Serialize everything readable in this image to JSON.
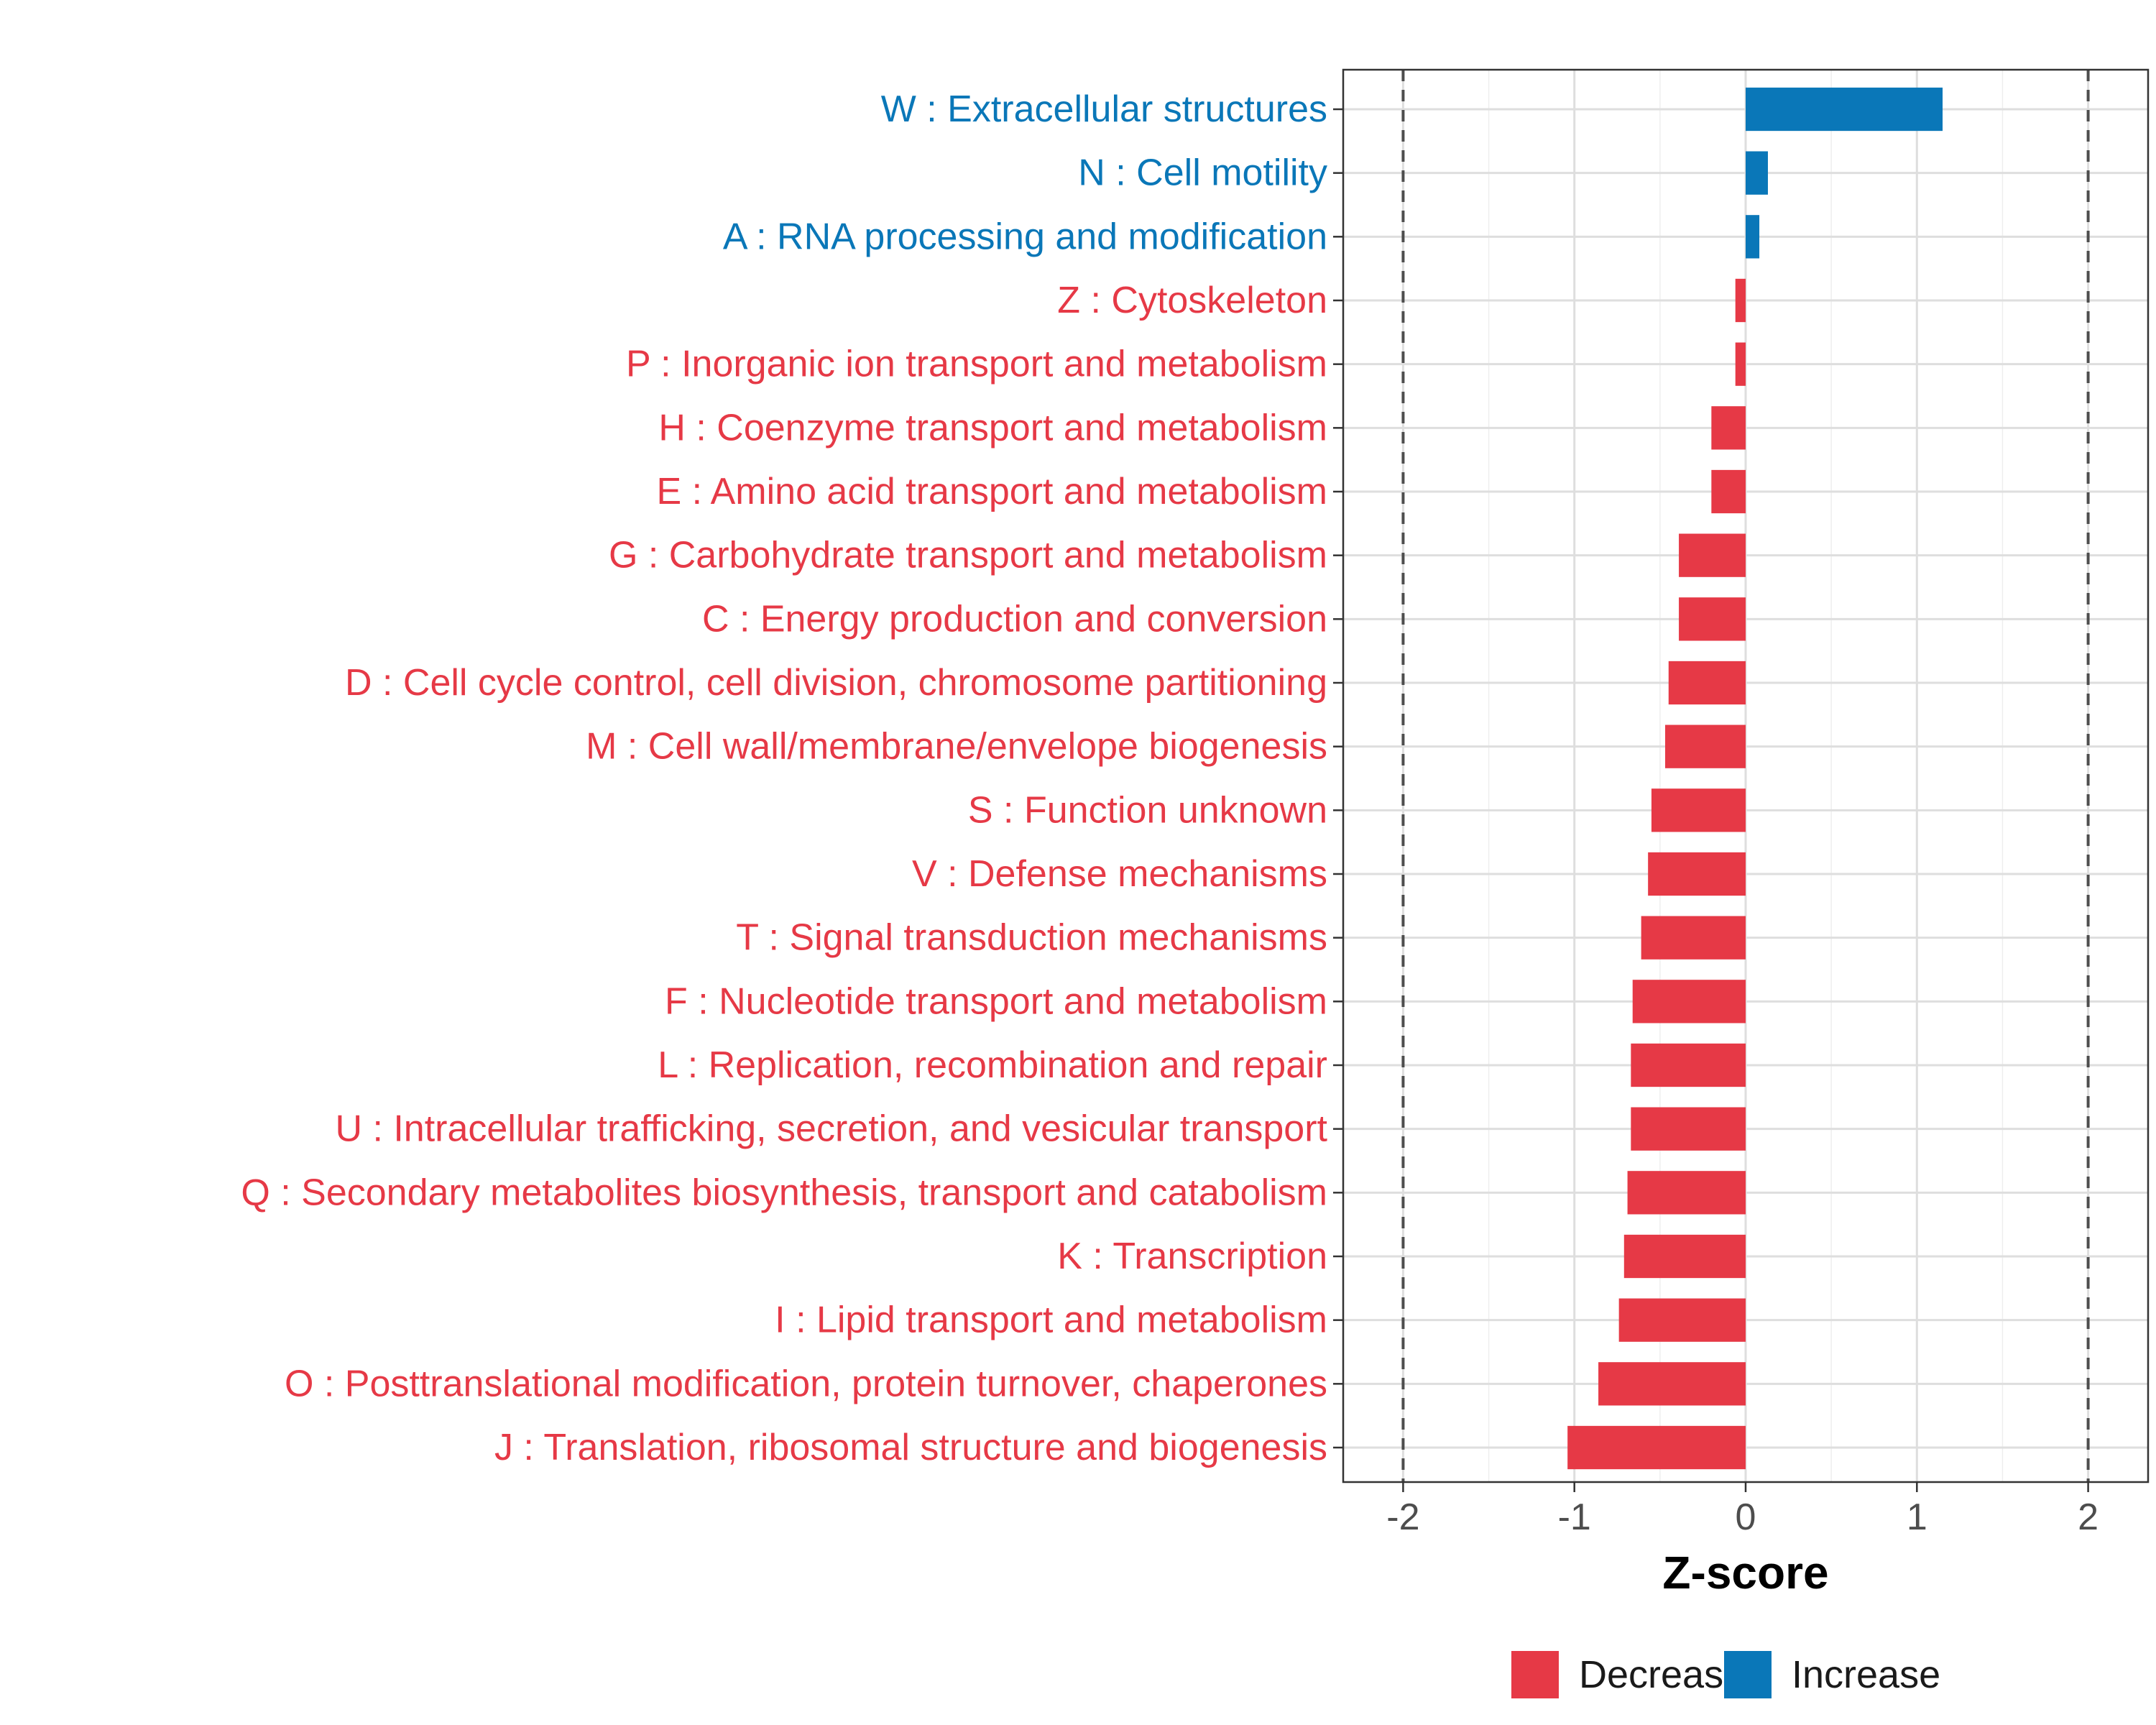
{
  "chart_data": {
    "type": "bar",
    "orientation": "horizontal",
    "xlabel": "Z-score",
    "ylabel": "",
    "xlim": [
      -2.35,
      2.35
    ],
    "xticks": [
      -2,
      -1,
      0,
      1,
      2
    ],
    "xtick_labels": [
      "-2",
      "-1",
      "0",
      "1",
      "2"
    ],
    "reference_lines": [
      -2,
      2
    ],
    "grid": true,
    "colors": {
      "Decrease": "#e63946",
      "Increase": "#0a77b8"
    },
    "categories": [
      "W : Extracellular structures",
      "N : Cell motility",
      "A : RNA processing and modification",
      "Z : Cytoskeleton",
      "P : Inorganic ion transport and metabolism",
      "H : Coenzyme transport and metabolism",
      "E : Amino acid transport and metabolism",
      "G : Carbohydrate transport and metabolism",
      "C : Energy production and conversion",
      "D : Cell cycle control, cell division, chromosome partitioning",
      "M : Cell wall/membrane/envelope biogenesis",
      "S : Function unknown",
      "V : Defense mechanisms",
      "T : Signal transduction mechanisms",
      "F : Nucleotide transport and metabolism",
      "L : Replication, recombination and repair",
      "U : Intracellular trafficking, secretion, and vesicular transport",
      "Q : Secondary metabolites biosynthesis, transport and catabolism",
      "K : Transcription",
      "I : Lipid transport and metabolism",
      "O : Posttranslational modification, protein turnover, chaperones",
      "J : Translation, ribosomal structure and biogenesis"
    ],
    "values": [
      1.15,
      0.13,
      0.08,
      -0.06,
      -0.06,
      -0.2,
      -0.2,
      -0.39,
      -0.39,
      -0.45,
      -0.47,
      -0.55,
      -0.57,
      -0.61,
      -0.66,
      -0.67,
      -0.67,
      -0.69,
      -0.71,
      -0.74,
      -0.86,
      -1.04
    ],
    "groups": [
      "Increase",
      "Increase",
      "Increase",
      "Decrease",
      "Decrease",
      "Decrease",
      "Decrease",
      "Decrease",
      "Decrease",
      "Decrease",
      "Decrease",
      "Decrease",
      "Decrease",
      "Decrease",
      "Decrease",
      "Decrease",
      "Decrease",
      "Decrease",
      "Decrease",
      "Decrease",
      "Decrease",
      "Decrease"
    ],
    "legend": {
      "position": "bottom",
      "entries": [
        {
          "label": "Decrease",
          "color": "#e63946"
        },
        {
          "label": "Increase",
          "color": "#0a77b8"
        }
      ]
    }
  }
}
